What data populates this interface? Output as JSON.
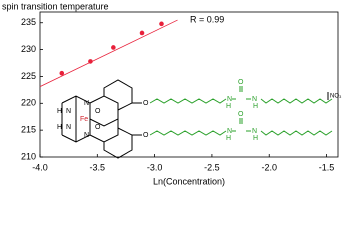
{
  "chart_data": {
    "type": "scatter",
    "y_label": "spin transition temperature",
    "x_label": "Ln(Concentration)",
    "annotation": "R = 0.99",
    "color": "#e8203a",
    "x": [
      -3.81,
      -3.56,
      -3.36,
      -3.11,
      -2.94
    ],
    "values": [
      225.6,
      227.8,
      230.4,
      233.1,
      234.8
    ],
    "fit_line": {
      "x": [
        -4.0,
        -2.8
      ],
      "values": [
        223.1,
        235.5
      ]
    },
    "xlim": [
      -4.0,
      -1.4
    ],
    "ylim": [
      210,
      237
    ],
    "xticks": [
      {
        "value": -4.0,
        "label": "-4.0"
      },
      {
        "value": -3.5,
        "label": "-3.5"
      },
      {
        "value": -3.0,
        "label": "-3.0"
      },
      {
        "value": -2.5,
        "label": "-2.5"
      },
      {
        "value": -2.0,
        "label": "-2.0"
      },
      {
        "value": -1.5,
        "label": "-1.5"
      }
    ],
    "yticks": [
      210,
      215,
      220,
      225,
      230,
      235
    ],
    "structure_labels": [
      "H",
      "N",
      "N",
      "H",
      "N",
      "N",
      "Fe",
      "O",
      "O",
      "O",
      "O",
      "H",
      "N",
      "N",
      "H",
      "O",
      "H",
      "N",
      "N",
      "H",
      "O",
      "NO₃"
    ]
  }
}
